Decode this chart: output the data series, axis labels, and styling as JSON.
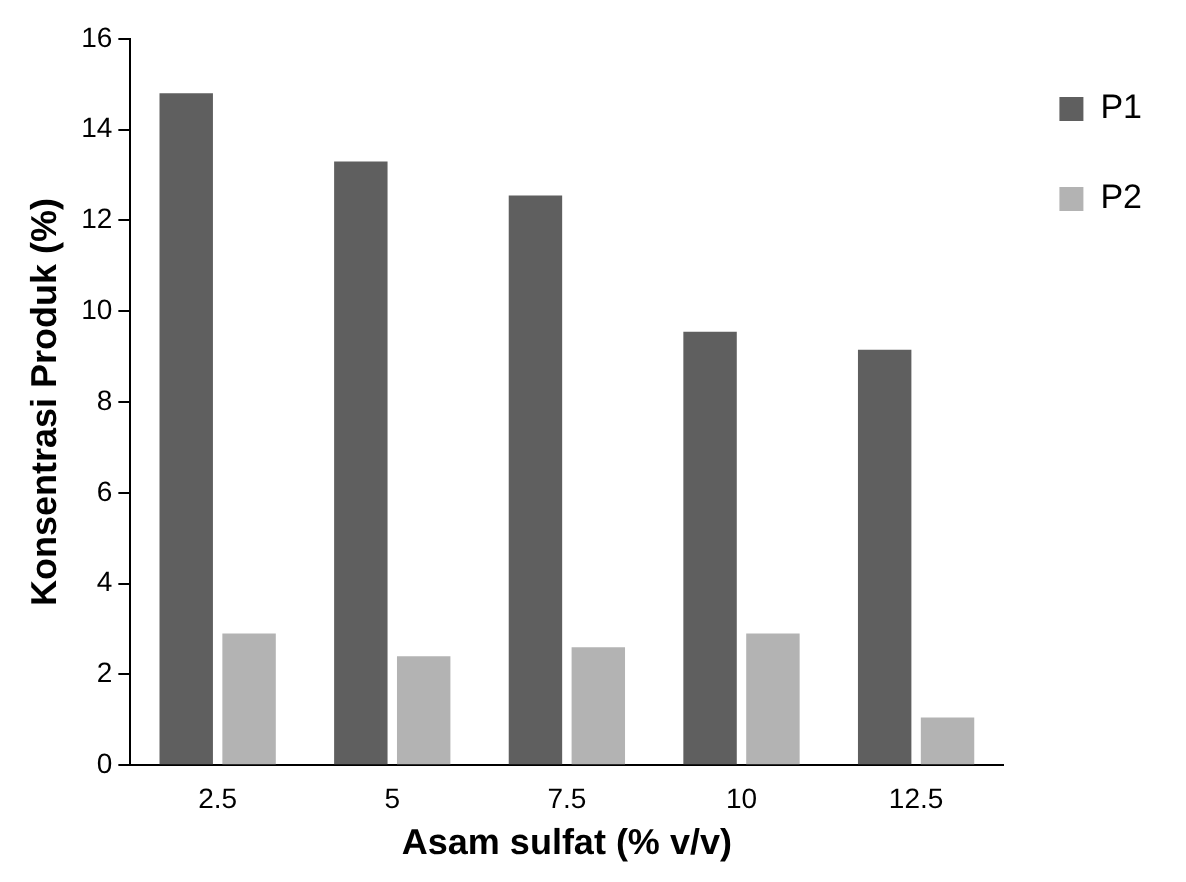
{
  "chart_data": {
    "type": "bar",
    "xlabel": "Asam sulfat (% v/v)",
    "ylabel": "Konsentrasi Produk (%)",
    "categories": [
      "2.5",
      "5",
      "7.5",
      "10",
      "12.5"
    ],
    "series": [
      {
        "name": "P1",
        "color": "#5f5f5f",
        "values": [
          14.8,
          13.3,
          12.55,
          9.55,
          9.15
        ]
      },
      {
        "name": "P2",
        "color": "#b3b3b3",
        "values": [
          2.9,
          2.4,
          2.6,
          2.9,
          1.05
        ]
      }
    ],
    "ylim": [
      0,
      16
    ],
    "yticks": [
      0,
      2,
      4,
      6,
      8,
      10,
      12,
      14,
      16
    ],
    "grid": false,
    "legend": "top right"
  }
}
